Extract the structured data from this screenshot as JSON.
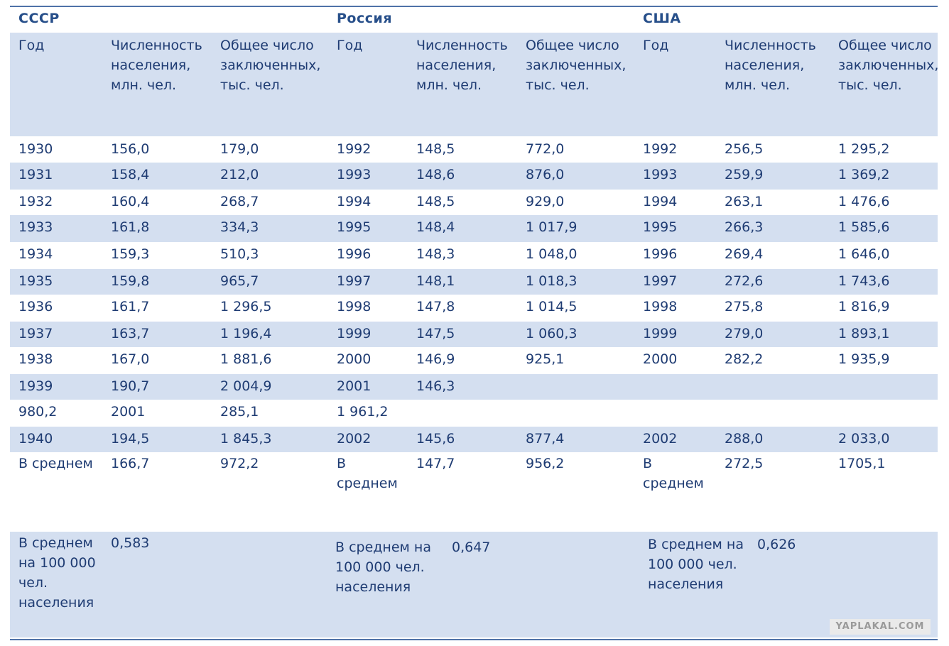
{
  "headers": {
    "ussr": "СССР",
    "russia": "Россия",
    "usa": "США"
  },
  "columns": {
    "year": "Год",
    "population": [
      "Численность",
      "населения,",
      "млн. чел."
    ],
    "prisoners": [
      "Общее число",
      "заключенных,",
      "тыс. чел."
    ]
  },
  "rows": [
    [
      "1930",
      "156,0",
      "179,0",
      "1992",
      "148,5",
      "772,0",
      "1992",
      "256,5",
      "1 295,2"
    ],
    [
      "1931",
      "158,4",
      "212,0",
      "1993",
      "148,6",
      "876,0",
      "1993",
      "259,9",
      "1 369,2"
    ],
    [
      "1932",
      "160,4",
      "268,7",
      "1994",
      "148,5",
      "929,0",
      "1994",
      "263,1",
      "1 476,6"
    ],
    [
      "1933",
      "161,8",
      "334,3",
      "1995",
      "148,4",
      "1 017,9",
      "1995",
      "266,3",
      "1 585,6"
    ],
    [
      "1934",
      "159,3",
      "510,3",
      "1996",
      "148,3",
      "1 048,0",
      "1996",
      "269,4",
      "1 646,0"
    ],
    [
      "1935",
      "159,8",
      "965,7",
      "1997",
      "148,1",
      "1 018,3",
      "1997",
      "272,6",
      "1 743,6"
    ],
    [
      "1936",
      "161,7",
      "1 296,5",
      "1998",
      "147,8",
      "1 014,5",
      "1998",
      "275,8",
      "1 816,9"
    ],
    [
      "1937",
      "163,7",
      "1 196,4",
      "1999",
      "147,5",
      "1 060,3",
      "1999",
      "279,0",
      "1 893,1"
    ],
    [
      "1938",
      "167,0",
      "1 881,6",
      "2000",
      "146,9",
      "925,1",
      "2000",
      "282,2",
      "1 935,9"
    ],
    [
      "1939",
      "190,7",
      "2 004,9",
      "2001",
      "146,3",
      "",
      "",
      "",
      ""
    ],
    [
      "980,2",
      "2001",
      "285,1",
      "1 961,2",
      "",
      "",
      "",
      "",
      ""
    ],
    [
      "1940",
      "194,5",
      "1 845,3",
      "2002",
      "145,6",
      "877,4",
      "2002",
      "288,0",
      "2 033,0"
    ]
  ],
  "average_row": {
    "ussr": {
      "label": "В среднем",
      "population": "166,7",
      "prisoners": "972,2"
    },
    "russia": {
      "label": [
        "В",
        "среднем"
      ],
      "population": "147,7",
      "prisoners": "956,2"
    },
    "usa": {
      "label": [
        "В",
        "среднем"
      ],
      "population": "272,5",
      "prisoners": "1705,1"
    }
  },
  "per100k_row": {
    "ussr": {
      "label": [
        "В среднем",
        "на 100 000",
        "чел.",
        "населения"
      ],
      "value": "0,583"
    },
    "russia": {
      "label": [
        "В среднем на",
        "100 000 чел.",
        "населения"
      ],
      "value": "0,647"
    },
    "usa": {
      "label": [
        "В среднем на",
        "100 000 чел.",
        "населения"
      ],
      "value": "0,626"
    }
  },
  "watermark": "YAPLAKAL.COM",
  "colors": {
    "text": "#1f3c73",
    "shade": "#d4dff0",
    "rule": "#4f72a8"
  }
}
